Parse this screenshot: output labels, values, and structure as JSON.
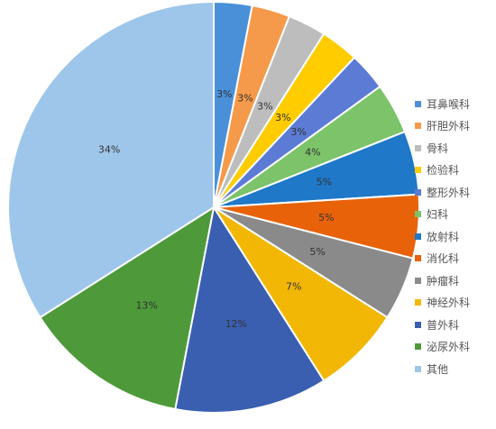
{
  "chart_data": {
    "type": "pie",
    "title": "",
    "legend_position": "right",
    "start": "12 o'clock, clockwise",
    "slices": [
      {
        "name": "耳鼻喉科",
        "value": 3,
        "label": "3%",
        "color": "#4A90D9"
      },
      {
        "name": "肝胆外科",
        "value": 3,
        "label": "3%",
        "color": "#F59A4A"
      },
      {
        "name": "骨科",
        "value": 3,
        "label": "3%",
        "color": "#BDBDBD"
      },
      {
        "name": "检验科",
        "value": 3,
        "label": "3%",
        "color": "#FFCC00"
      },
      {
        "name": "整形外科",
        "value": 3,
        "label": "3%",
        "color": "#5B7BD5"
      },
      {
        "name": "妇科",
        "value": 4,
        "label": "4%",
        "color": "#7CC36A"
      },
      {
        "name": "放射科",
        "value": 5,
        "label": "5%",
        "color": "#1F78C8"
      },
      {
        "name": "消化科",
        "value": 5,
        "label": "5%",
        "color": "#E8620A"
      },
      {
        "name": "肿瘤科",
        "value": 5,
        "label": "5%",
        "color": "#8A8A8A"
      },
      {
        "name": "神经外科",
        "value": 7,
        "label": "7%",
        "color": "#F2B705"
      },
      {
        "name": "普外科",
        "value": 12,
        "label": "12%",
        "color": "#3A5FB0"
      },
      {
        "name": "泌尿外科",
        "value": 13,
        "label": "13%",
        "color": "#4E9A3A"
      },
      {
        "name": "其他",
        "value": 34,
        "label": "34%",
        "color": "#9EC6EA"
      }
    ]
  }
}
